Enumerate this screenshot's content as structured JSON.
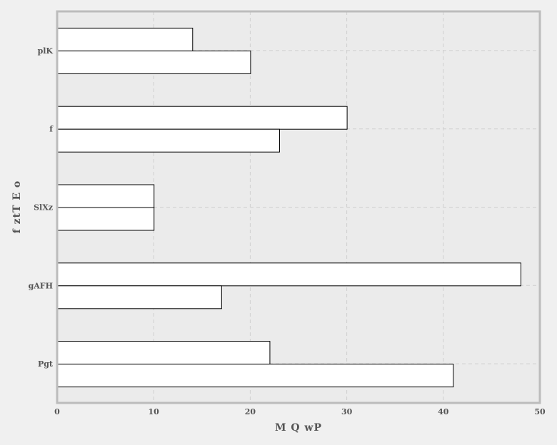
{
  "chart_data": {
    "type": "bar",
    "orientation": "horizontal",
    "categories": [
      "Pgt",
      "gAFH",
      "SlXz",
      "f",
      "plK"
    ],
    "series": [
      {
        "values": [
          22,
          48,
          10,
          30,
          14
        ]
      },
      {
        "values": [
          41,
          17,
          10,
          23,
          20
        ]
      }
    ],
    "xlabel": "M Q  wP",
    "ylabel": "f ztT E  o",
    "xlim": [
      0,
      50
    ],
    "xticks": [
      "0",
      "10",
      "20",
      "30",
      "40",
      "50"
    ],
    "grid": true,
    "colors": {
      "background": "#f0f0f0",
      "plot_background": "#ebebeb",
      "frame": "#bcbcbc",
      "bar_fill": "#ffffff",
      "bar_edge": "#000000",
      "grid": "#cfcfcf",
      "text": "#555555"
    }
  }
}
